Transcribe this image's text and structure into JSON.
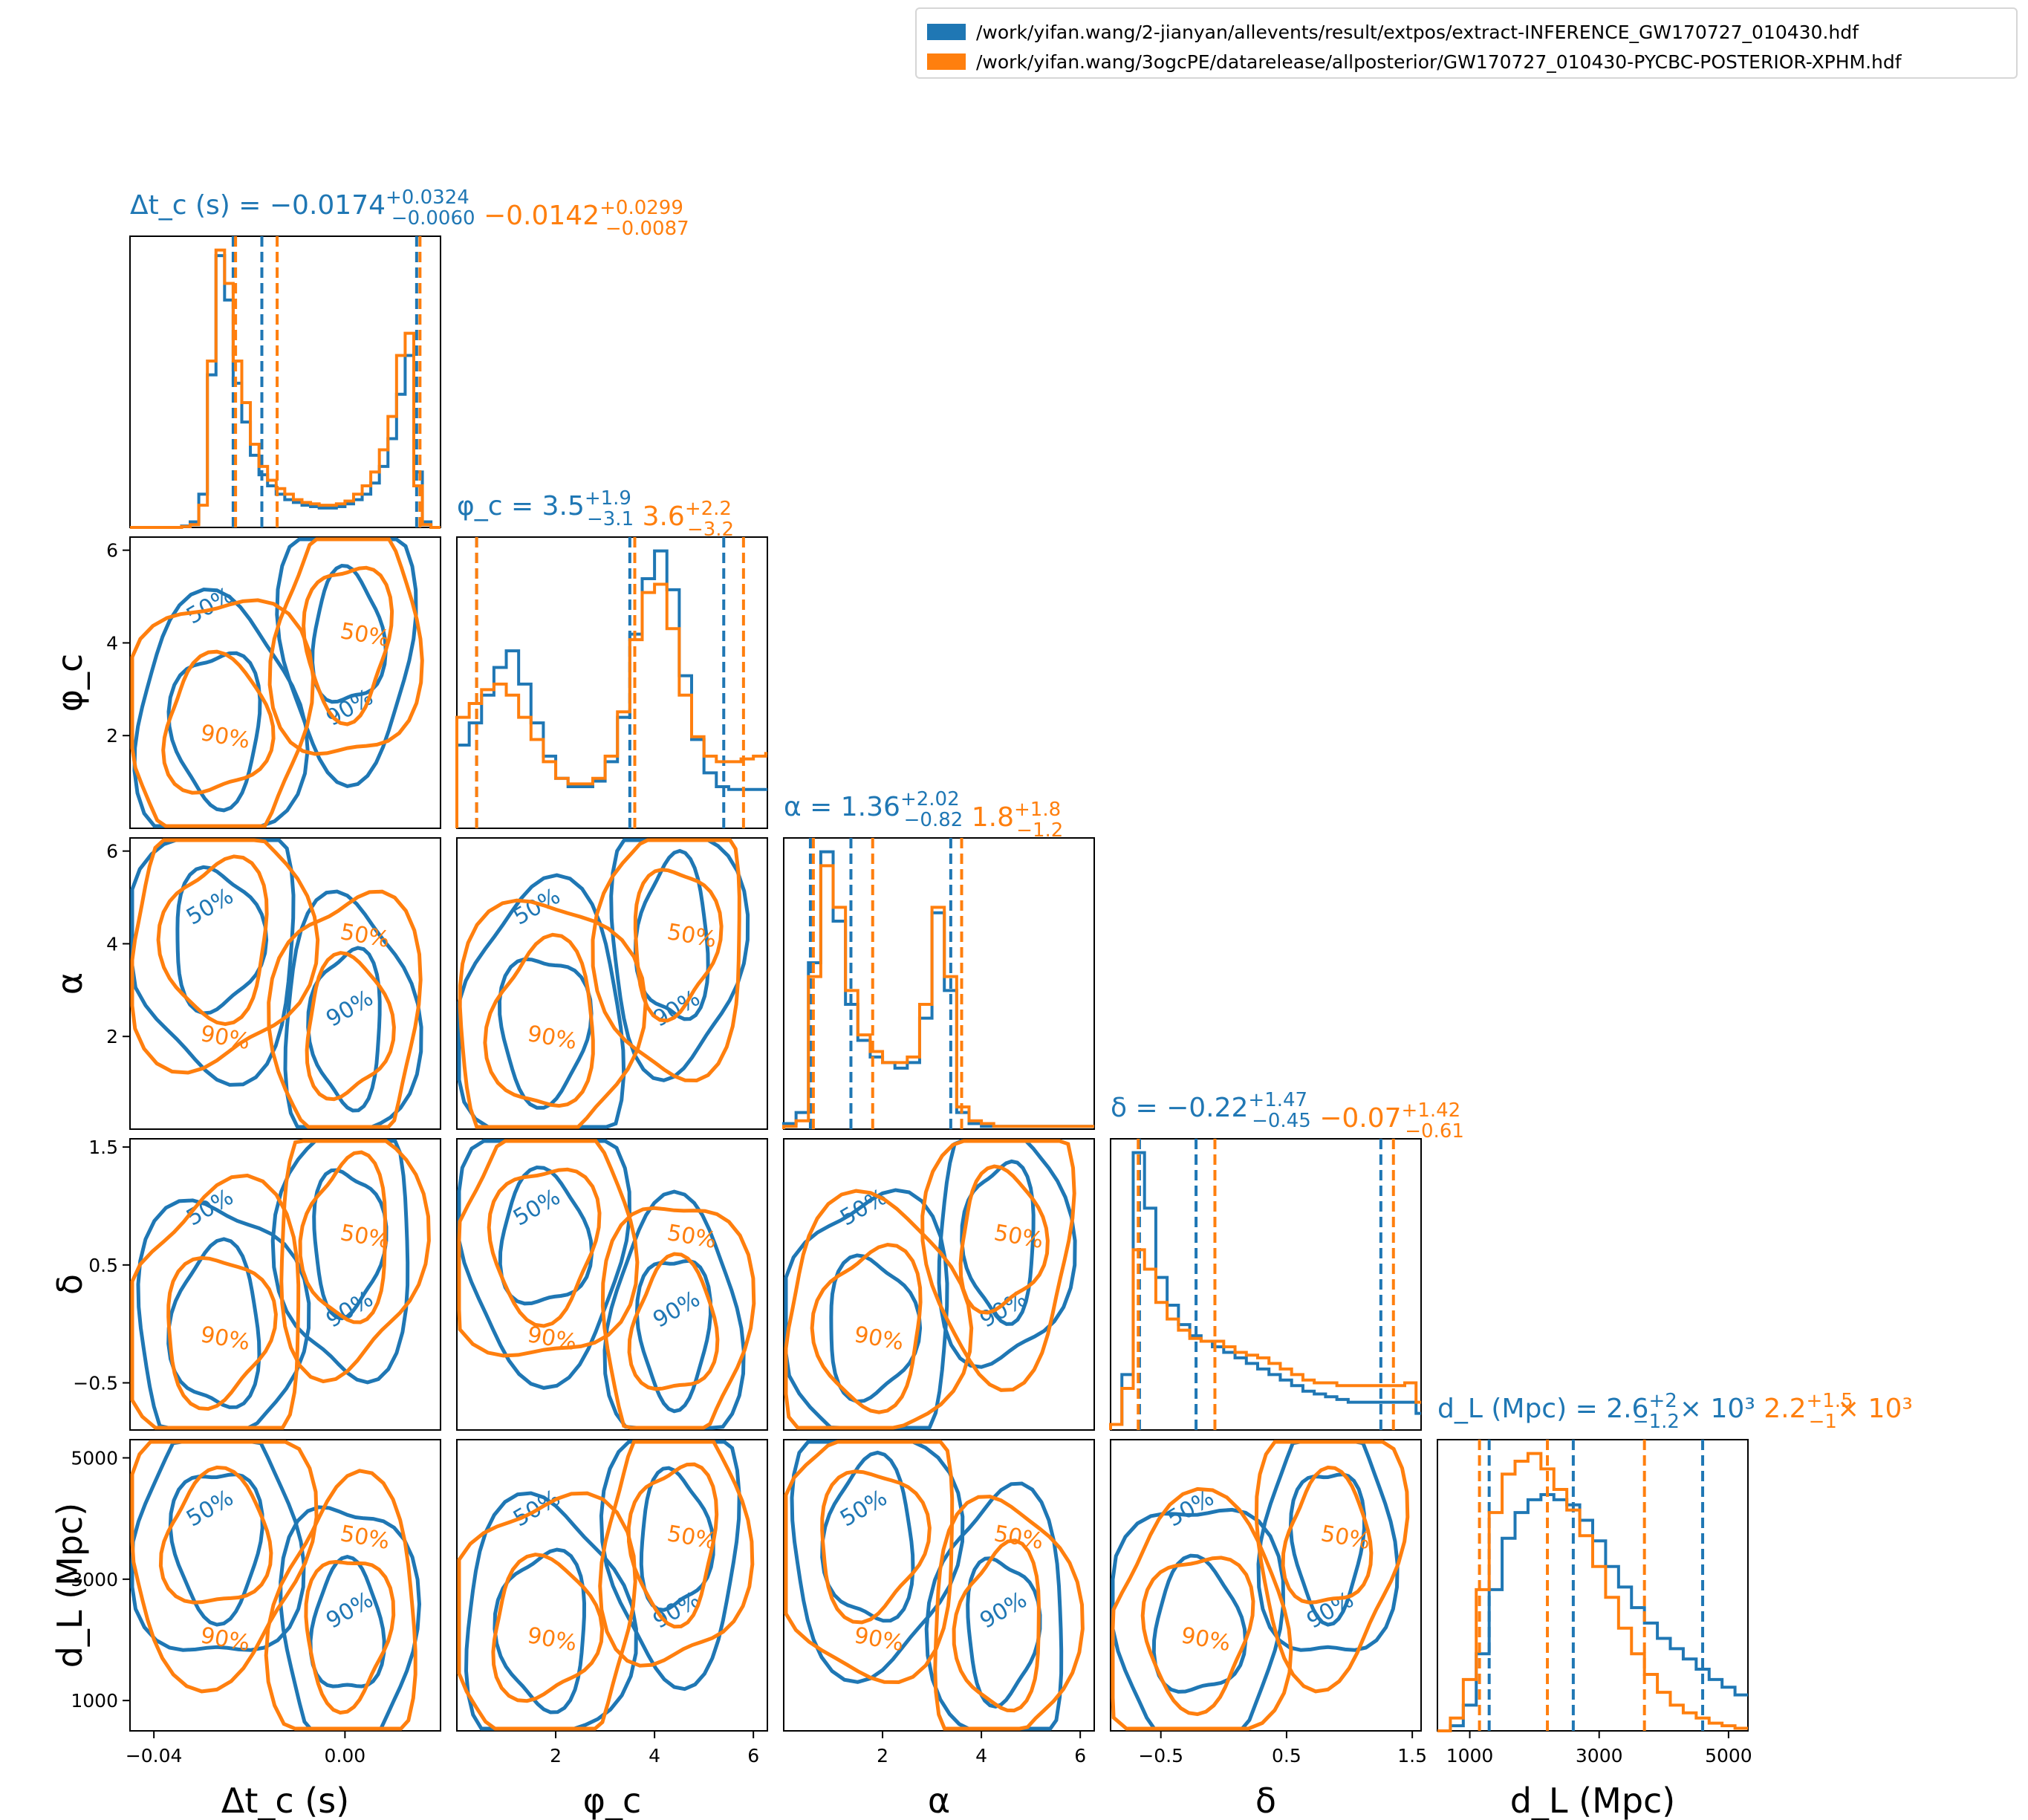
{
  "legend": {
    "entries": [
      {
        "label": "/work/yifan.wang/2-jianyan/allevents/result/extpos/extract-INFERENCE_GW170727_010430.hdf",
        "color": "#1f77b4"
      },
      {
        "label": "/work/yifan.wang/3ogcPE/datarelease/allposterior/GW170727_010430-PYCBC-POSTERIOR-XPHM.hdf",
        "color": "#ff7f0e"
      }
    ]
  },
  "colors": {
    "series_a": "#1f77b4",
    "series_b": "#ff7f0e"
  },
  "chart_data": {
    "type": "corner",
    "parameters": [
      {
        "key": "dtc",
        "axis_label": "Δt_c (s)",
        "range": [
          -0.045,
          0.02
        ],
        "ticks": [
          -0.04,
          0.0
        ],
        "tick_labels": [
          "−0.04",
          "0.00"
        ]
      },
      {
        "key": "phic",
        "axis_label": "φ_c",
        "range": [
          0.0,
          6.283
        ],
        "ticks": [
          2,
          4,
          6
        ],
        "tick_labels": [
          "2",
          "4",
          "6"
        ]
      },
      {
        "key": "alpha",
        "axis_label": "α",
        "range": [
          0.0,
          6.283
        ],
        "ticks": [
          2,
          4,
          6
        ],
        "tick_labels": [
          "2",
          "4",
          "6"
        ]
      },
      {
        "key": "delta",
        "axis_label": "δ",
        "range": [
          -0.9,
          1.57
        ],
        "ticks": [
          -0.5,
          0.5,
          1.5
        ],
        "tick_labels": [
          "−0.5",
          "0.5",
          "1.5"
        ]
      },
      {
        "key": "dl",
        "axis_label": "d_L (Mpc)",
        "range": [
          500,
          5300
        ],
        "ticks": [
          1000,
          3000,
          5000
        ],
        "tick_labels": [
          "1000",
          "3000",
          "5000"
        ]
      }
    ],
    "diag_titles": [
      {
        "a": {
          "name": "Δt_c (s)",
          "median": "−0.0174",
          "plus": "+0.0324",
          "minus": "−0.0060"
        },
        "b": {
          "median": "−0.0142",
          "plus": "+0.0299",
          "minus": "−0.0087"
        }
      },
      {
        "a": {
          "name": "φ_c",
          "median": "3.5",
          "plus": "+1.9",
          "minus": "−3.1"
        },
        "b": {
          "median": "3.6",
          "plus": "+2.2",
          "minus": "−3.2"
        }
      },
      {
        "a": {
          "name": "α",
          "median": "1.36",
          "plus": "+2.02",
          "minus": "−0.82"
        },
        "b": {
          "median": "1.8",
          "plus": "+1.8",
          "minus": "−1.2"
        }
      },
      {
        "a": {
          "name": "δ",
          "median": "−0.22",
          "plus": "+1.47",
          "minus": "−0.45"
        },
        "b": {
          "median": "−0.07",
          "plus": "+1.42",
          "minus": "−0.61"
        }
      },
      {
        "a": {
          "name": "d_L (Mpc)",
          "median": "2.6",
          "plus": "+2",
          "minus": "−1.2",
          "scale": "× 10³"
        },
        "b": {
          "median": "2.2",
          "plus": "+1.5",
          "minus": "−1",
          "scale": "× 10³"
        }
      }
    ],
    "histograms": {
      "dtc": {
        "x": [
          -0.045,
          -0.0432,
          -0.0414,
          -0.0396,
          -0.0378,
          -0.036,
          -0.0342,
          -0.0324,
          -0.0306,
          -0.0288,
          -0.027,
          -0.0252,
          -0.0234,
          -0.0216,
          -0.0198,
          -0.018,
          -0.0162,
          -0.0144,
          -0.0126,
          -0.0108,
          -0.009,
          -0.0072,
          -0.0054,
          -0.0036,
          -0.0018,
          0.0,
          0.0018,
          0.0036,
          0.0054,
          0.0072,
          0.009,
          0.0108,
          0.0126,
          0.0144,
          0.0162,
          0.018,
          0.0198
        ],
        "a": [
          0,
          0,
          0,
          0,
          0,
          0,
          0.005,
          0.02,
          0.12,
          0.55,
          0.98,
          0.82,
          0.52,
          0.38,
          0.26,
          0.19,
          0.15,
          0.12,
          0.1,
          0.09,
          0.08,
          0.075,
          0.07,
          0.07,
          0.075,
          0.085,
          0.1,
          0.12,
          0.16,
          0.22,
          0.32,
          0.48,
          0.62,
          0.2,
          0.02,
          0,
          0
        ],
        "b": [
          0,
          0,
          0,
          0,
          0,
          0,
          0.003,
          0.01,
          0.08,
          0.6,
          1.0,
          0.88,
          0.6,
          0.45,
          0.3,
          0.22,
          0.17,
          0.14,
          0.12,
          0.1,
          0.09,
          0.085,
          0.08,
          0.08,
          0.085,
          0.095,
          0.12,
          0.15,
          0.2,
          0.28,
          0.4,
          0.62,
          0.7,
          0.15,
          0.01,
          0,
          0
        ],
        "q_a": [
          -0.0234,
          -0.0174,
          0.015
        ],
        "q_b": [
          -0.0229,
          -0.0142,
          0.0157
        ]
      },
      "phic": {
        "x": [
          0.0,
          0.25,
          0.5,
          0.75,
          1.0,
          1.25,
          1.5,
          1.75,
          2.0,
          2.25,
          2.5,
          2.75,
          3.0,
          3.25,
          3.5,
          3.75,
          4.0,
          4.25,
          4.5,
          4.75,
          5.0,
          5.25,
          5.5,
          5.75,
          6.0,
          6.25
        ],
        "a": [
          0.3,
          0.38,
          0.48,
          0.58,
          0.64,
          0.52,
          0.38,
          0.26,
          0.18,
          0.15,
          0.15,
          0.17,
          0.24,
          0.4,
          0.7,
          0.9,
          1.0,
          0.86,
          0.55,
          0.32,
          0.2,
          0.15,
          0.14,
          0.14,
          0.14,
          0.14
        ],
        "b": [
          0.4,
          0.45,
          0.5,
          0.52,
          0.48,
          0.4,
          0.32,
          0.24,
          0.18,
          0.16,
          0.16,
          0.18,
          0.26,
          0.42,
          0.68,
          0.85,
          0.88,
          0.72,
          0.48,
          0.33,
          0.26,
          0.24,
          0.24,
          0.25,
          0.26,
          0.27
        ],
        "q_a": [
          0.4,
          3.5,
          5.4
        ],
        "q_b": [
          0.4,
          3.6,
          5.8
        ]
      },
      "alpha": {
        "x": [
          0.0,
          0.25,
          0.5,
          0.75,
          1.0,
          1.25,
          1.5,
          1.75,
          2.0,
          2.25,
          2.5,
          2.75,
          3.0,
          3.25,
          3.5,
          3.75,
          4.0,
          4.25,
          4.5,
          4.75,
          5.0,
          5.25,
          5.5,
          5.75,
          6.0,
          6.25
        ],
        "a": [
          0.02,
          0.06,
          0.6,
          1.0,
          0.75,
          0.45,
          0.32,
          0.26,
          0.24,
          0.22,
          0.24,
          0.4,
          0.78,
          0.5,
          0.06,
          0.02,
          0.01,
          0.01,
          0.01,
          0.01,
          0.01,
          0.01,
          0.01,
          0.01,
          0.01,
          0.01
        ],
        "b": [
          0.01,
          0.03,
          0.55,
          0.95,
          0.8,
          0.5,
          0.34,
          0.28,
          0.24,
          0.24,
          0.26,
          0.45,
          0.8,
          0.55,
          0.08,
          0.03,
          0.02,
          0.01,
          0.01,
          0.01,
          0.01,
          0.01,
          0.01,
          0.01,
          0.01,
          0.01
        ],
        "q_a": [
          0.54,
          1.36,
          3.38
        ],
        "q_b": [
          0.6,
          1.8,
          3.6
        ]
      },
      "delta": {
        "x": [
          -0.9,
          -0.81,
          -0.72,
          -0.63,
          -0.54,
          -0.45,
          -0.36,
          -0.27,
          -0.18,
          -0.09,
          0.0,
          0.09,
          0.18,
          0.27,
          0.36,
          0.45,
          0.54,
          0.63,
          0.72,
          0.81,
          0.9,
          0.99,
          1.08,
          1.17,
          1.26,
          1.35,
          1.44,
          1.53
        ],
        "a": [
          0.02,
          0.2,
          1.0,
          0.8,
          0.55,
          0.45,
          0.38,
          0.34,
          0.32,
          0.3,
          0.28,
          0.26,
          0.24,
          0.22,
          0.2,
          0.18,
          0.16,
          0.14,
          0.13,
          0.12,
          0.11,
          0.1,
          0.1,
          0.1,
          0.1,
          0.1,
          0.1,
          0.06
        ],
        "b": [
          0.02,
          0.15,
          0.65,
          0.58,
          0.46,
          0.4,
          0.36,
          0.33,
          0.32,
          0.32,
          0.3,
          0.28,
          0.27,
          0.26,
          0.24,
          0.22,
          0.2,
          0.18,
          0.17,
          0.17,
          0.16,
          0.16,
          0.16,
          0.16,
          0.16,
          0.16,
          0.17,
          0.1
        ],
        "q_a": [
          -0.67,
          -0.22,
          1.25
        ],
        "q_b": [
          -0.68,
          -0.07,
          1.35
        ]
      },
      "dl": {
        "x": [
          500,
          700,
          900,
          1100,
          1300,
          1500,
          1700,
          1900,
          2100,
          2300,
          2500,
          2700,
          2900,
          3100,
          3300,
          3500,
          3700,
          3900,
          4100,
          4300,
          4500,
          4700,
          4900,
          5100
        ],
        "a": [
          0.0,
          0.02,
          0.1,
          0.3,
          0.55,
          0.75,
          0.85,
          0.9,
          0.92,
          0.9,
          0.88,
          0.82,
          0.74,
          0.64,
          0.56,
          0.48,
          0.42,
          0.36,
          0.32,
          0.28,
          0.24,
          0.2,
          0.17,
          0.14
        ],
        "b": [
          0.0,
          0.05,
          0.2,
          0.55,
          0.85,
          1.0,
          1.05,
          1.08,
          1.02,
          0.94,
          0.86,
          0.76,
          0.64,
          0.52,
          0.4,
          0.3,
          0.22,
          0.15,
          0.1,
          0.07,
          0.05,
          0.03,
          0.02,
          0.01
        ],
        "q_a": [
          1300,
          2600,
          4600
        ],
        "q_b": [
          1150,
          2200,
          3700
        ]
      }
    },
    "contour_levels": [
      "50%",
      "90%"
    ]
  }
}
